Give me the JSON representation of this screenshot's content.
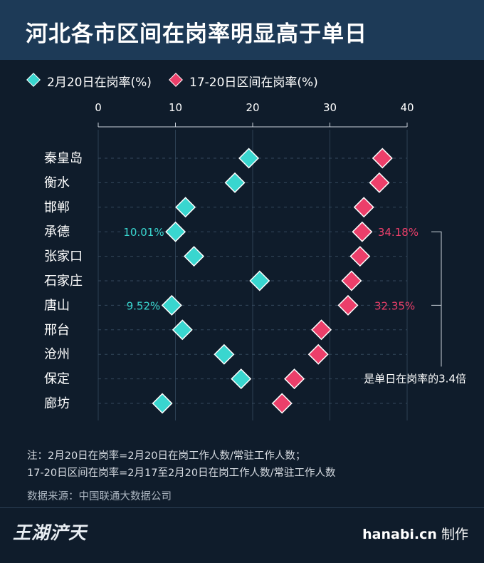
{
  "title": "河北各市区间在岗率明显高于单日",
  "legend": {
    "series1": "2月20日在岗率(%)",
    "series2": "17-20日区间在岗率(%)"
  },
  "colors": {
    "series1": "#39d6cf",
    "series2": "#ec3f6a",
    "title_bar": "#1d3a57",
    "background": "#0f1c2b"
  },
  "chart_data": {
    "type": "dumbbell",
    "title": "河北各市区间在岗率明显高于单日",
    "xlim": [
      0,
      40
    ],
    "xticks": [
      0,
      10,
      20,
      30,
      40
    ],
    "grid": true,
    "legend_position": "top-left",
    "categories": [
      "秦皇岛",
      "衡水",
      "邯郸",
      "承德",
      "张家口",
      "石家庄",
      "唐山",
      "邢台",
      "沧州",
      "保定",
      "廊坊"
    ],
    "series": [
      {
        "name": "2月20日在岗率(%)",
        "values": [
          19.5,
          17.7,
          11.3,
          10.01,
          12.4,
          20.9,
          9.52,
          10.9,
          16.3,
          18.5,
          8.3
        ]
      },
      {
        "name": "17-20日区间在岗率(%)",
        "values": [
          36.8,
          36.4,
          34.4,
          34.18,
          33.9,
          32.8,
          32.35,
          28.9,
          28.5,
          25.4,
          23.8
        ]
      }
    ],
    "annotations": {
      "chengde_low": "10.01%",
      "chengde_high": "34.18%",
      "tangshan_low": "9.52%",
      "tangshan_high": "32.35%",
      "bracket_text": "是单日在岗率的3.4倍"
    }
  },
  "notes": {
    "line1": "注：2月20日在岗率=2月20日在岗工作人数/常驻工作人数；",
    "line2": "17-20日区间在岗率=2月17至2月20日在岗工作人数/常驻工作人数"
  },
  "source": "数据来源：中国联通大数据公司",
  "footer": {
    "logo": "王湖浐天",
    "credit_site": "hanabi.cn",
    "credit_suffix": " 制作"
  }
}
